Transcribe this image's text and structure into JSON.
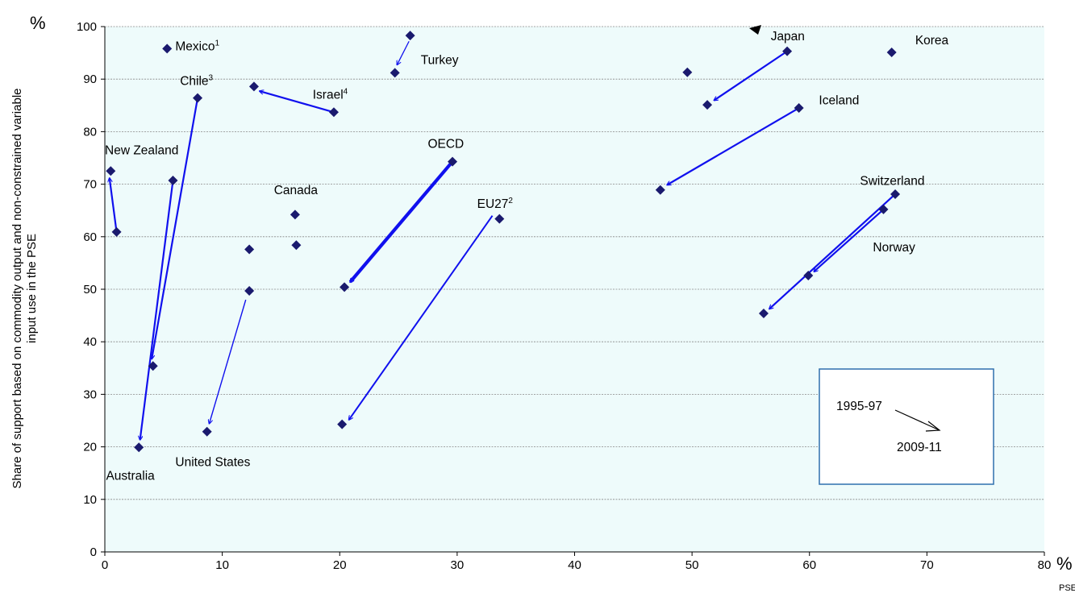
{
  "chart_data": {
    "type": "scatter",
    "xunit": "%",
    "xunit_sub": "PSE",
    "yunit": "%",
    "ylabel_lines": [
      "Share of support based on commodity output and non-constrained variable",
      "input use in the PSE"
    ],
    "xlim": [
      0,
      80
    ],
    "ylim": [
      0,
      100
    ],
    "xticks": [
      0,
      10,
      20,
      30,
      40,
      50,
      60,
      70,
      80
    ],
    "yticks": [
      0,
      10,
      20,
      30,
      40,
      50,
      60,
      70,
      80,
      90,
      100
    ],
    "grid": "horizontal",
    "colors": {
      "marker": "#1a1a6e",
      "arrow": "#1010ee",
      "background": "#eefbfb",
      "grid": "#888888",
      "legend_border": "#2e6fae"
    },
    "points": [
      {
        "x": 5.3,
        "y": 95.8
      },
      {
        "x": 26.0,
        "y": 98.3
      },
      {
        "x": 24.7,
        "y": 91.2
      },
      {
        "x": 58.1,
        "y": 95.3
      },
      {
        "x": 51.3,
        "y": 85.1
      },
      {
        "x": 49.6,
        "y": 91.3
      },
      {
        "x": 67.0,
        "y": 95.1
      },
      {
        "x": 7.9,
        "y": 86.4
      },
      {
        "x": 12.7,
        "y": 88.6
      },
      {
        "x": 19.5,
        "y": 83.7
      },
      {
        "x": 59.1,
        "y": 84.5
      },
      {
        "x": 0.5,
        "y": 72.5
      },
      {
        "x": 1.0,
        "y": 60.9
      },
      {
        "x": 5.8,
        "y": 70.7
      },
      {
        "x": 29.6,
        "y": 74.3
      },
      {
        "x": 47.3,
        "y": 68.9
      },
      {
        "x": 67.3,
        "y": 68.1
      },
      {
        "x": 16.2,
        "y": 64.2
      },
      {
        "x": 16.3,
        "y": 58.4
      },
      {
        "x": 12.3,
        "y": 57.6
      },
      {
        "x": 12.3,
        "y": 49.7
      },
      {
        "x": 33.6,
        "y": 63.4
      },
      {
        "x": 66.3,
        "y": 65.2
      },
      {
        "x": 59.9,
        "y": 52.6
      },
      {
        "x": 20.4,
        "y": 50.4
      },
      {
        "x": 56.1,
        "y": 45.4
      },
      {
        "x": 4.1,
        "y": 35.4
      },
      {
        "x": 2.9,
        "y": 19.9
      },
      {
        "x": 8.7,
        "y": 22.9
      },
      {
        "x": 20.2,
        "y": 24.3
      }
    ],
    "arrows": [
      {
        "from": [
          25.9,
          97.2
        ],
        "to": [
          24.9,
          92.8
        ],
        "width": 1.3
      },
      {
        "from": [
          58.1,
          95.3
        ],
        "to": [
          51.9,
          86.0
        ],
        "width": 2.2
      },
      {
        "from": [
          19.5,
          83.7
        ],
        "to": [
          13.2,
          87.7
        ],
        "width": 2.2
      },
      {
        "from": [
          59.1,
          84.5
        ],
        "to": [
          47.9,
          69.9
        ],
        "width": 2.2
      },
      {
        "from": [
          29.6,
          74.3
        ],
        "to": [
          20.9,
          51.4
        ],
        "width": 4.2
      },
      {
        "from": [
          33.0,
          64.0
        ],
        "to": [
          20.8,
          25.2
        ],
        "width": 2.0
      },
      {
        "from": [
          12.0,
          48.0
        ],
        "to": [
          8.9,
          24.5
        ],
        "width": 1.4
      },
      {
        "from": [
          7.9,
          86.4
        ],
        "to": [
          4.0,
          36.8
        ],
        "width": 2.2
      },
      {
        "from": [
          5.8,
          70.7
        ],
        "to": [
          3.0,
          21.4
        ],
        "width": 2.2
      },
      {
        "from": [
          1.0,
          60.9
        ],
        "to": [
          0.4,
          71.1
        ],
        "width": 2.2
      },
      {
        "from": [
          67.3,
          68.1
        ],
        "to": [
          56.6,
          46.3
        ],
        "width": 2.2
      },
      {
        "from": [
          66.3,
          65.2
        ],
        "to": [
          60.4,
          53.4
        ],
        "width": 2.2
      }
    ],
    "labels": [
      {
        "text": "Mexico",
        "sup": "1",
        "x": 6.0,
        "y": 95.5,
        "anchor": "start"
      },
      {
        "text": "Turkey",
        "sup": "",
        "x": 26.9,
        "y": 92.9,
        "anchor": "start"
      },
      {
        "text": "Japan",
        "sup": "",
        "x": 56.7,
        "y": 97.4,
        "anchor": "start"
      },
      {
        "text": "Korea",
        "sup": "",
        "x": 69.0,
        "y": 96.6,
        "anchor": "start"
      },
      {
        "text": "Chile",
        "sup": "3",
        "x": 6.4,
        "y": 88.9,
        "anchor": "start"
      },
      {
        "text": "Israel",
        "sup": "4",
        "x": 17.7,
        "y": 86.3,
        "anchor": "start"
      },
      {
        "text": "Iceland",
        "sup": "",
        "x": 60.8,
        "y": 85.2,
        "anchor": "start"
      },
      {
        "text": "New Zealand",
        "sup": "",
        "x": 0.0,
        "y": 75.7,
        "anchor": "start"
      },
      {
        "text": "OECD",
        "sup": "",
        "x": 27.5,
        "y": 76.9,
        "anchor": "start"
      },
      {
        "text": "Switzerland",
        "sup": "",
        "x": 64.3,
        "y": 69.9,
        "anchor": "start"
      },
      {
        "text": "Canada",
        "sup": "",
        "x": 14.4,
        "y": 68.1,
        "anchor": "start"
      },
      {
        "text": "EU27",
        "sup": "2",
        "x": 31.7,
        "y": 65.5,
        "anchor": "start"
      },
      {
        "text": "Norway",
        "sup": "",
        "x": 65.4,
        "y": 57.2,
        "anchor": "start"
      },
      {
        "text": "United States",
        "sup": "",
        "x": 6.0,
        "y": 16.3,
        "anchor": "start"
      },
      {
        "text": "Australia",
        "sup": "",
        "x": 0.1,
        "y": 13.7,
        "anchor": "start"
      }
    ],
    "legend": {
      "from_label": "1995-97",
      "to_label": "2009-11",
      "position": "bottom-right"
    }
  }
}
